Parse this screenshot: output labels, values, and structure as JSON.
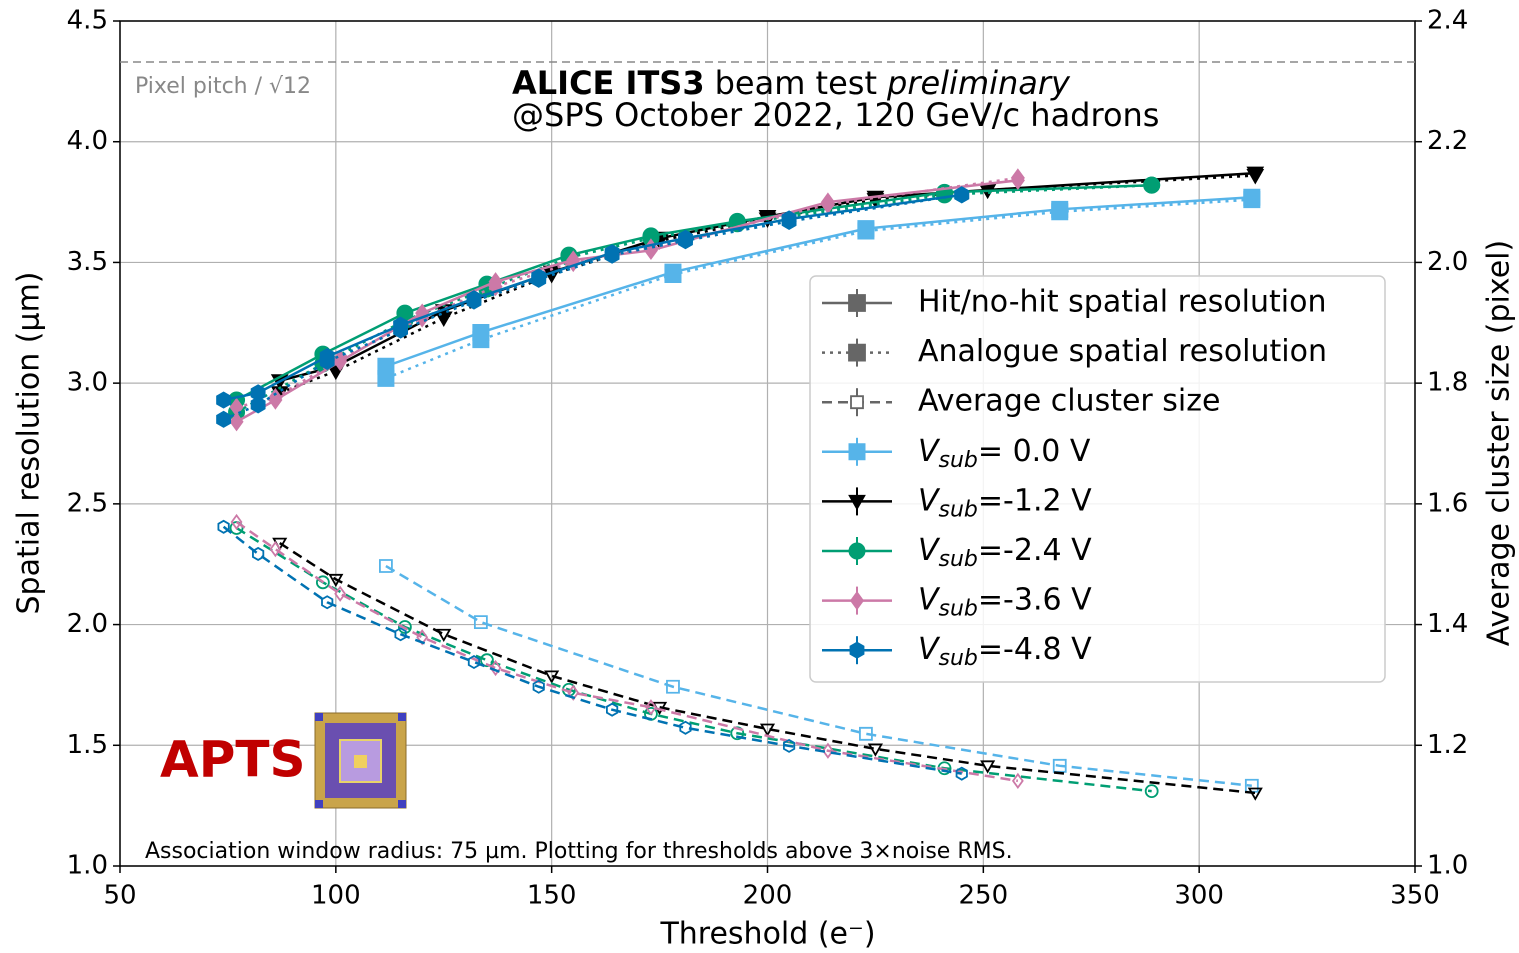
{
  "chart_data": {
    "type": "line",
    "title": [
      "ALICE ITS3",
      "beam test",
      "preliminary"
    ],
    "subtitle": "@SPS October 2022, 120 GeV/c hadrons",
    "xlabel": "Threshold (e⁻)",
    "ylabel": "Spatial resolution (µm)",
    "y2label": "Average cluster size (pixel)",
    "reference_line": {
      "label": "Pixel pitch / √12",
      "value": 4.33
    },
    "footnote": "Association window radius: 75 µm. Plotting for thresholds above 3×noise RMS.",
    "chip_label": "APTS",
    "legend_styles": [
      "Hit/no-hit spatial resolution",
      "Analogue spatial resolution",
      "Average cluster size"
    ],
    "xlim": [
      50,
      350
    ],
    "xticks": [
      50,
      100,
      150,
      200,
      250,
      300,
      350
    ],
    "ylim": [
      1.0,
      4.5
    ],
    "yticks": [
      {
        "value": 1,
        "label": "1.0"
      },
      1.5,
      {
        "value": 2,
        "label": "2.0"
      },
      2.5,
      {
        "value": 3,
        "label": "3.0"
      },
      3.5,
      {
        "value": 4,
        "label": "4.0"
      },
      4.5
    ],
    "y2lim": [
      1.0,
      2.4
    ],
    "y2ticks": [
      {
        "value": 1,
        "label": "1.0"
      },
      1.2,
      1.4,
      1.6,
      1.8,
      {
        "value": 2,
        "label": "2.0"
      },
      2.2,
      2.4
    ],
    "grid": true,
    "series": [
      {
        "name": "Vsub= 0.0 V",
        "color": "#56b4e9",
        "marker": "square",
        "x": [
          111.6,
          133.6,
          178.1,
          222.8,
          267.7,
          312.2
        ],
        "values": [
          3.07,
          3.21,
          3.46,
          3.64,
          3.72,
          3.77
        ],
        "analogue_values": [
          3.02,
          3.18,
          3.45,
          3.63,
          3.71,
          3.76
        ],
        "cluster_values": [
          1.497,
          1.404,
          1.297,
          1.219,
          1.166,
          1.133
        ]
      },
      {
        "name": "Vsub=-1.2 V",
        "color": "#000000",
        "marker": "triangle_down",
        "x": [
          87,
          100,
          125,
          150,
          175,
          200,
          225,
          251,
          313
        ],
        "values": [
          3.01,
          3.07,
          3.3,
          3.46,
          3.6,
          3.69,
          3.77,
          3.8,
          3.87
        ],
        "analogue_values": [
          2.96,
          3.05,
          3.27,
          3.45,
          3.59,
          3.68,
          3.76,
          3.8,
          3.86
        ],
        "cluster_values": [
          1.535,
          1.475,
          1.384,
          1.315,
          1.263,
          1.227,
          1.194,
          1.166,
          1.121
        ]
      },
      {
        "name": "Vsub=-2.4 V",
        "color": "#009e73",
        "marker": "circle",
        "x": [
          77,
          97,
          116,
          135,
          154,
          173,
          193,
          241,
          289
        ],
        "values": [
          2.93,
          3.12,
          3.29,
          3.41,
          3.53,
          3.61,
          3.67,
          3.79,
          3.82
        ],
        "analogue_values": [
          2.88,
          3.08,
          3.26,
          3.39,
          3.52,
          3.6,
          3.66,
          3.78,
          3.82
        ],
        "cluster_values": [
          1.56,
          1.47,
          1.396,
          1.341,
          1.292,
          1.252,
          1.22,
          1.162,
          1.124
        ]
      },
      {
        "name": "Vsub=-3.6 V",
        "color": "#cc79a7",
        "marker": "diamond",
        "x": [
          77,
          86,
          101,
          120,
          137,
          155,
          173,
          214,
          258
        ],
        "values": [
          2.84,
          2.93,
          3.09,
          3.29,
          3.42,
          3.51,
          3.55,
          3.75,
          3.84
        ],
        "analogue_values": [
          2.9,
          2.94,
          3.1,
          3.27,
          3.4,
          3.5,
          3.56,
          3.74,
          3.85
        ],
        "cluster_values": [
          1.57,
          1.525,
          1.451,
          1.379,
          1.328,
          1.287,
          1.263,
          1.191,
          1.141
        ]
      },
      {
        "name": "Vsub=-4.8 V",
        "color": "#0072b2",
        "marker": "hexagon",
        "x": [
          74,
          82,
          98,
          115,
          132,
          147,
          164,
          181,
          205,
          245
        ],
        "values": [
          2.93,
          2.96,
          3.11,
          3.24,
          3.35,
          3.44,
          3.54,
          3.6,
          3.68,
          3.78
        ],
        "analogue_values": [
          2.85,
          2.91,
          3.09,
          3.22,
          3.34,
          3.43,
          3.53,
          3.59,
          3.67,
          3.78
        ],
        "cluster_values": [
          1.562,
          1.517,
          1.437,
          1.384,
          1.338,
          1.297,
          1.259,
          1.229,
          1.199,
          1.153
        ]
      }
    ]
  }
}
